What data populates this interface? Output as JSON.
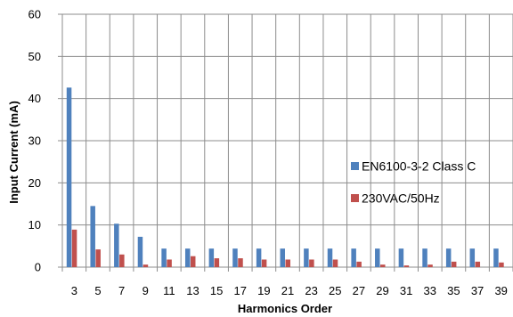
{
  "chart_data": {
    "type": "bar",
    "title": "",
    "xlabel": "Harmonics Order",
    "ylabel": "Input Current  (mA)",
    "ylim": [
      0,
      60
    ],
    "yticks": [
      0,
      10,
      20,
      30,
      40,
      50,
      60
    ],
    "grid": true,
    "legend_position": "right",
    "categories": [
      "3",
      "5",
      "7",
      "9",
      "11",
      "13",
      "15",
      "17",
      "19",
      "21",
      "23",
      "25",
      "27",
      "29",
      "31",
      "33",
      "35",
      "37",
      "39"
    ],
    "series": [
      {
        "name": "EN6100-3-2 Class C",
        "color": "#4f81bd",
        "values": [
          42.6,
          14.5,
          10.3,
          7.2,
          4.4,
          4.4,
          4.4,
          4.4,
          4.4,
          4.4,
          4.4,
          4.4,
          4.4,
          4.4,
          4.4,
          4.4,
          4.4,
          4.4,
          4.4
        ]
      },
      {
        "name": "230VAC/50Hz",
        "color": "#c0504d",
        "values": [
          8.9,
          4.2,
          3.0,
          0.6,
          1.8,
          2.6,
          2.1,
          2.1,
          1.8,
          1.8,
          1.8,
          1.8,
          1.3,
          0.6,
          0.4,
          0.6,
          1.3,
          1.3,
          1.1
        ]
      }
    ]
  }
}
